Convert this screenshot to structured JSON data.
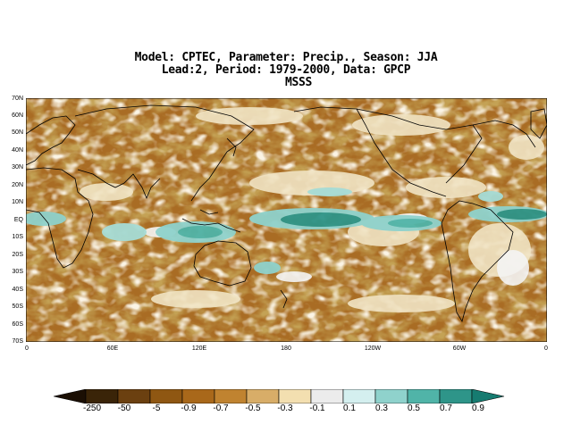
{
  "title": {
    "line1": "Model: CPTEC, Parameter: Precip., Season: JJA",
    "line2": "Lead:2, Period: 1979-2000, Data: GPCP",
    "line3": "MSSS"
  },
  "map": {
    "latitude_labels": [
      "70N",
      "60N",
      "50N",
      "40N",
      "30N",
      "20N",
      "10N",
      "EQ",
      "10S",
      "20S",
      "30S",
      "40S",
      "50S",
      "60S",
      "70S"
    ],
    "longitude_labels": [
      "0",
      "60E",
      "120E",
      "180",
      "120W",
      "60W",
      "0"
    ]
  },
  "colorbar": {
    "labels": [
      "-250",
      "-50",
      "-5",
      "-0.9",
      "-0.7",
      "-0.5",
      "-0.3",
      "-0.1",
      "0.1",
      "0.3",
      "0.5",
      "0.7",
      "0.9"
    ],
    "colors": [
      "#1b0f04",
      "#3a2408",
      "#6b4010",
      "#8f5712",
      "#a9681a",
      "#c08330",
      "#d8ad68",
      "#f3dfb0",
      "#ececec",
      "#d4efef",
      "#8fd2cc",
      "#50b4a8",
      "#2e9589",
      "#167b70"
    ]
  }
}
